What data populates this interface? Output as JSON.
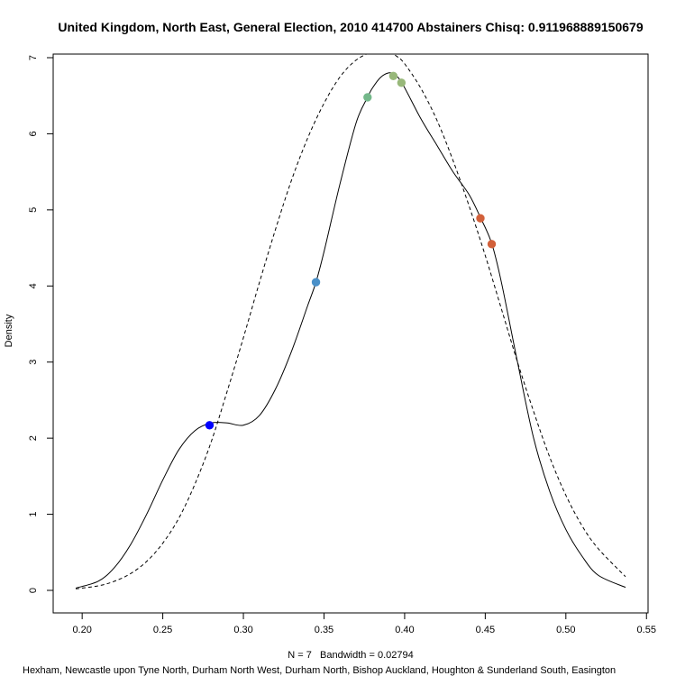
{
  "chart_data": {
    "type": "line",
    "title": "United Kingdom, North East, General Election, 2010 414700 Abstainers Chisq: 0.911968889150679",
    "xlabel": "N = 7   Bandwidth = 0.02794",
    "ylabel": "Density",
    "subtitle": "Hexham, Newcastle upon Tyne North, Durham North West, Durham North, Bishop Auckland, Houghton & Sunderland South, Easington",
    "xlim": [
      0.196,
      0.537
    ],
    "ylim": [
      0,
      7
    ],
    "x_ticks": [
      0.2,
      0.25,
      0.3,
      0.35,
      0.4,
      0.45,
      0.5,
      0.55
    ],
    "x_tick_labels": [
      "0.20",
      "0.25",
      "0.30",
      "0.35",
      "0.40",
      "0.45",
      "0.50",
      "0.55"
    ],
    "y_ticks": [
      0,
      1,
      2,
      3,
      4,
      5,
      6,
      7
    ],
    "y_tick_labels": [
      "0",
      "1",
      "2",
      "3",
      "4",
      "5",
      "6",
      "7"
    ],
    "grid": false,
    "series": [
      {
        "style": "solid",
        "color": "#000000",
        "x": [
          0.196,
          0.21,
          0.22,
          0.23,
          0.24,
          0.25,
          0.26,
          0.27,
          0.28,
          0.29,
          0.3,
          0.31,
          0.32,
          0.33,
          0.34,
          0.345,
          0.35,
          0.36,
          0.37,
          0.377,
          0.38,
          0.385,
          0.39,
          0.393,
          0.398,
          0.41,
          0.42,
          0.43,
          0.44,
          0.447,
          0.454,
          0.46,
          0.47,
          0.48,
          0.49,
          0.5,
          0.51,
          0.52,
          0.537
        ],
        "y": [
          0.03,
          0.12,
          0.3,
          0.6,
          1.0,
          1.45,
          1.85,
          2.1,
          2.2,
          2.2,
          2.17,
          2.3,
          2.65,
          3.15,
          3.75,
          4.05,
          4.45,
          5.35,
          6.15,
          6.48,
          6.6,
          6.74,
          6.8,
          6.78,
          6.68,
          6.2,
          5.85,
          5.5,
          5.2,
          4.9,
          4.56,
          4.05,
          3.0,
          2.0,
          1.3,
          0.8,
          0.45,
          0.2,
          0.04
        ]
      },
      {
        "style": "dashed",
        "color": "#000000",
        "x": [
          0.196,
          0.21,
          0.22,
          0.23,
          0.24,
          0.25,
          0.26,
          0.27,
          0.28,
          0.29,
          0.3,
          0.31,
          0.32,
          0.33,
          0.34,
          0.35,
          0.36,
          0.37,
          0.38,
          0.385,
          0.39,
          0.395,
          0.4,
          0.41,
          0.42,
          0.43,
          0.44,
          0.45,
          0.46,
          0.47,
          0.48,
          0.49,
          0.5,
          0.51,
          0.52,
          0.537
        ],
        "y": [
          0.02,
          0.06,
          0.12,
          0.22,
          0.38,
          0.62,
          0.95,
          1.4,
          1.95,
          2.62,
          3.32,
          4.05,
          4.75,
          5.4,
          5.95,
          6.4,
          6.75,
          6.97,
          7.08,
          7.1,
          7.08,
          7.02,
          6.92,
          6.6,
          6.18,
          5.65,
          5.05,
          4.4,
          3.7,
          3.0,
          2.35,
          1.75,
          1.25,
          0.85,
          0.55,
          0.18
        ]
      }
    ],
    "points": [
      {
        "x": 0.279,
        "y": 2.17,
        "color": "#0000ff"
      },
      {
        "x": 0.345,
        "y": 4.05,
        "color": "#4a90c8"
      },
      {
        "x": 0.377,
        "y": 6.48,
        "color": "#74b88a"
      },
      {
        "x": 0.393,
        "y": 6.76,
        "color": "#98b87a"
      },
      {
        "x": 0.398,
        "y": 6.67,
        "color": "#98b87a"
      },
      {
        "x": 0.447,
        "y": 4.89,
        "color": "#d2603a"
      },
      {
        "x": 0.454,
        "y": 4.55,
        "color": "#d2603a"
      }
    ]
  }
}
